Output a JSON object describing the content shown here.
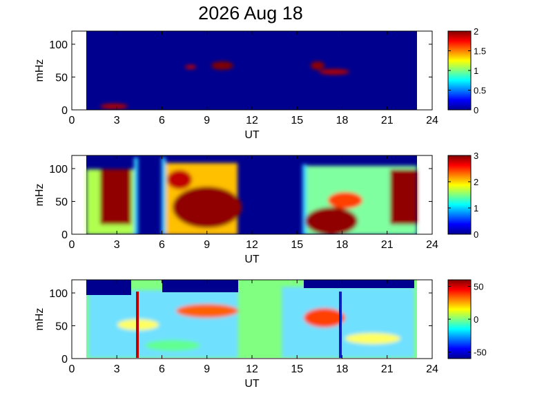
{
  "title": "2026 Aug 18",
  "chart_data": [
    {
      "type": "heatmap",
      "xlabel": "UT",
      "ylabel": "mHz",
      "xlim": [
        0,
        24
      ],
      "xticks": [
        0,
        3,
        6,
        9,
        12,
        15,
        18,
        21,
        24
      ],
      "ylim": [
        0,
        120
      ],
      "yticks": [
        0,
        50,
        100
      ],
      "clim": [
        0,
        2
      ],
      "cticks": [
        0,
        0.5,
        1,
        1.5,
        2
      ]
    },
    {
      "type": "heatmap",
      "xlabel": "UT",
      "ylabel": "mHz",
      "xlim": [
        0,
        24
      ],
      "xticks": [
        0,
        3,
        6,
        9,
        12,
        15,
        18,
        21,
        24
      ],
      "ylim": [
        0,
        120
      ],
      "yticks": [
        0,
        50,
        100
      ],
      "clim": [
        0,
        3
      ],
      "cticks": [
        0,
        1,
        2,
        3
      ]
    },
    {
      "type": "heatmap",
      "xlabel": "UT",
      "ylabel": "mHz",
      "xlim": [
        0,
        24
      ],
      "xticks": [
        0,
        3,
        6,
        9,
        12,
        15,
        18,
        21,
        24
      ],
      "ylim": [
        0,
        120
      ],
      "yticks": [
        0,
        50,
        100
      ],
      "clim": [
        -60,
        60
      ],
      "cticks": [
        -50,
        0,
        50
      ]
    }
  ]
}
